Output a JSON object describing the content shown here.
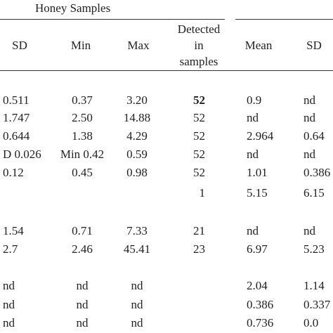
{
  "table": {
    "group_header": "Honey Samples",
    "columns": [
      "SD",
      "Min",
      "Max",
      [
        "Detected",
        "in",
        "samples"
      ],
      "Mean",
      "SD"
    ],
    "rows": [
      [
        "0.511",
        "0.37",
        "3.20",
        "52",
        "0.9",
        "nd"
      ],
      [
        "1.747",
        "2.50",
        "14.88",
        "52",
        "nd",
        "nd"
      ],
      [
        "0.644",
        "1.38",
        "4.29",
        "52",
        "2.964",
        "0.64"
      ],
      [
        "D 0.026",
        "Min 0.42",
        "0.59",
        "52",
        "nd",
        "nd"
      ],
      [
        "0.12",
        "0.45",
        "0.98",
        "52",
        "1.01",
        "0.386"
      ],
      [
        null,
        null,
        null,
        "1",
        "5.15",
        "6.15"
      ],
      [
        "1.54",
        "0.71",
        "7.33",
        "21",
        "nd",
        "nd"
      ],
      [
        "2.7",
        "2.46",
        "45.41",
        "23",
        "6.97",
        "5.23"
      ],
      [
        "nd",
        "nd",
        "nd",
        null,
        "2.04",
        "1.14"
      ],
      [
        "nd",
        "nd",
        "nd",
        null,
        "0.386",
        "0.337"
      ],
      [
        "nd",
        "nd",
        "nd",
        null,
        "0.736",
        "0.0"
      ]
    ]
  }
}
